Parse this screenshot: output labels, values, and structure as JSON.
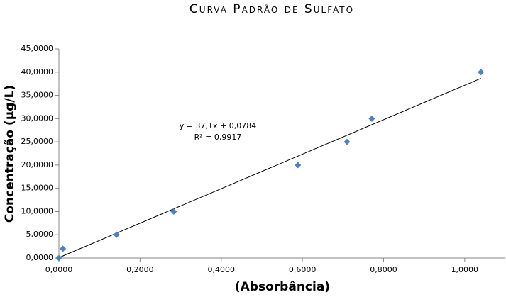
{
  "chart_data": {
    "type": "scatter",
    "title": "Curva Padrão de Sulfato",
    "x_label": "(Absorbância)",
    "y_label": "Concentração (µg/L)",
    "series": [
      {
        "name": "Concentração",
        "color": "#4f81bd",
        "x": [
          0,
          0.01,
          0.142,
          0.283,
          0.589,
          0.71,
          0.771,
          1.04
        ],
        "values": [
          0,
          2,
          5,
          10,
          20,
          25,
          30,
          40
        ]
      }
    ],
    "trendline": {
      "slope": 37.1,
      "intercept": 0.0784,
      "equation": "y = 37,1x + 0,0784",
      "r2": "R² = 0,9917",
      "color": "#000000"
    },
    "xlim": [
      0,
      1.1
    ],
    "xticks": [
      {
        "value": 0,
        "label": "0,0000"
      },
      {
        "value": 0.2,
        "label": "0,2000"
      },
      {
        "value": 0.4,
        "label": "0,4000"
      },
      {
        "value": 0.6,
        "label": "0,6000"
      },
      {
        "value": 0.8,
        "label": "0,8000"
      },
      {
        "value": 1.0,
        "label": "1,0000"
      }
    ],
    "ylim": [
      0,
      45
    ],
    "yticks": [
      {
        "value": 0,
        "label": "0,0000"
      },
      {
        "value": 5,
        "label": "5,0000"
      },
      {
        "value": 10,
        "label": "10,0000"
      },
      {
        "value": 15,
        "label": "15,0000"
      },
      {
        "value": 20,
        "label": "20,0000"
      },
      {
        "value": 25,
        "label": "25,0000"
      },
      {
        "value": 30,
        "label": "30,0000"
      },
      {
        "value": 35,
        "label": "35,0000"
      },
      {
        "value": 40,
        "label": "40,0000"
      },
      {
        "value": 45,
        "label": "45,0000"
      }
    ],
    "grid": false
  }
}
